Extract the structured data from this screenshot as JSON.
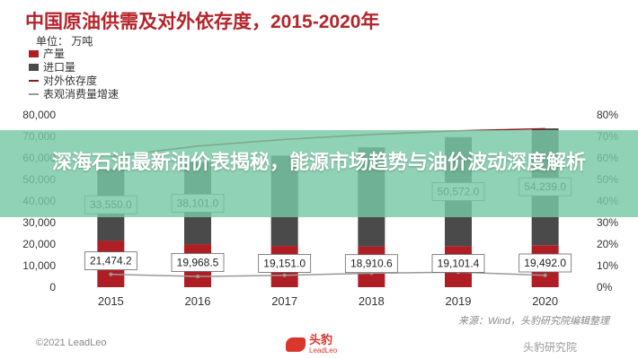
{
  "header": {
    "title": "中国原油供需及对外依存度，2015-2020年",
    "unit": "单位：  万吨"
  },
  "legend": [
    {
      "label": "产量",
      "color": "#b01e25",
      "kind": "bar"
    },
    {
      "label": "进口量",
      "color": "#4a4a4a",
      "kind": "bar"
    },
    {
      "label": "对外依存度",
      "color": "#8b1a1a",
      "kind": "line"
    },
    {
      "label": "表观消费量增速",
      "color": "#9a9a9a",
      "kind": "line"
    }
  ],
  "banner": {
    "text": "深海石油最新油价表揭秘，能源市场趋势与油价波动深度解析"
  },
  "footer": {
    "source": "来源：Wind，头豹研究院编辑整理",
    "copyright": "©2021 LeadLeo",
    "logo_name": "头豹",
    "logo_sub": "LeadLeo",
    "watermark": "头豹研究院"
  },
  "colors": {
    "production": "#b01e25",
    "imports": "#4a4a4a",
    "dependency_line": "#8b1a1a",
    "growth_line": "#9a9a9a",
    "banner": "#78c8a5"
  },
  "chart_data": {
    "type": "bar",
    "stacked": true,
    "categories": [
      "2015",
      "2016",
      "2017",
      "2018",
      "2019",
      "2020"
    ],
    "series": [
      {
        "name": "产量",
        "values": [
          21474.2,
          19968.5,
          19151.0,
          18910.6,
          19101.4,
          19492.0
        ],
        "labels": [
          "21,474.2",
          "19,968.5",
          "19,151.0",
          "18,910.6",
          "19,101.4",
          "19,492.0"
        ]
      },
      {
        "name": "进口量",
        "values": [
          33550.0,
          38101.0,
          42000,
          46000,
          50572.0,
          54239.0
        ],
        "labels": [
          "33,550.0",
          "38,101.0",
          "",
          "",
          "50,572.0",
          "54,239.0"
        ]
      },
      {
        "name": "对外依存度",
        "axis": "right",
        "values": [
          60.6,
          65.5,
          68.6,
          70.9,
          72.6,
          73.6
        ]
      },
      {
        "name": "表观消费量增速",
        "axis": "right",
        "values": [
          6.0,
          5.0,
          5.5,
          6.5,
          7.0,
          5.5
        ]
      }
    ],
    "y_left": {
      "min": 0,
      "max": 80000,
      "ticks": [
        "0",
        "10,000",
        "20,000",
        "30,000",
        "40,000",
        "50,000",
        "60,000",
        "70,000",
        "80,000"
      ]
    },
    "y_right": {
      "min": 0,
      "max": 80,
      "ticks": [
        "0%",
        "10%",
        "20%",
        "30%",
        "40%",
        "50%",
        "60%",
        "70%",
        "80%"
      ]
    },
    "grid": false,
    "legend_position": "top-left"
  }
}
